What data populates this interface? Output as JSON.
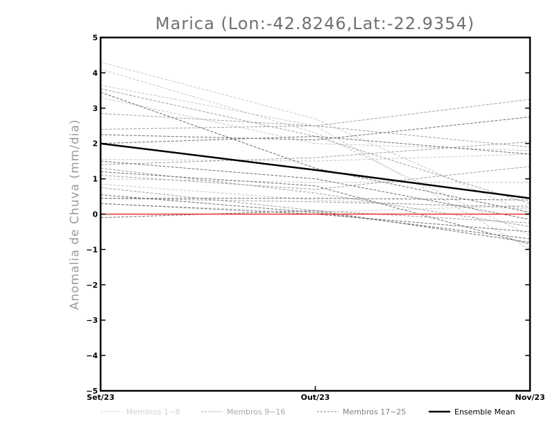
{
  "chart_data": {
    "type": "line",
    "title": "Marica (Lon:-42.8246,Lat:-22.9354)",
    "xlabel": "",
    "ylabel": "Anomalia de Chuva (mm/dia)",
    "categories": [
      "Set/23",
      "Out/23",
      "Nov/23"
    ],
    "ylim": [
      -5,
      5
    ],
    "yticks": [
      "-5",
      "-4",
      "-3",
      "-2",
      "-1",
      "0",
      "1",
      "2",
      "3",
      "4",
      "5"
    ],
    "grid": false,
    "legend_position": "bottom",
    "series": [
      {
        "name": "Membros 1-8",
        "group": "g1",
        "values": [
          4.3,
          2.7,
          0.0
        ]
      },
      {
        "name": "Membros 1-8",
        "group": "g1",
        "values": [
          4.1,
          2.3,
          -0.6
        ]
      },
      {
        "name": "Membros 1-8",
        "group": "g1",
        "values": [
          3.65,
          2.5,
          -1.0
        ]
      },
      {
        "name": "Membros 1-8",
        "group": "g1",
        "values": [
          3.3,
          2.0,
          1.8
        ]
      },
      {
        "name": "Membros 1-8",
        "group": "g1",
        "values": [
          1.55,
          1.5,
          1.7
        ]
      },
      {
        "name": "Membros 1-8",
        "group": "g1",
        "values": [
          1.0,
          0.9,
          0.9
        ]
      },
      {
        "name": "Membros 1-8",
        "group": "g1",
        "values": [
          0.85,
          0.4,
          0.15
        ]
      },
      {
        "name": "Membros 1-8",
        "group": "g1",
        "values": [
          0.3,
          0.05,
          0.25
        ]
      },
      {
        "name": "Membros 9-16",
        "group": "g2",
        "values": [
          3.55,
          2.2,
          0.3
        ]
      },
      {
        "name": "Membros 9-16",
        "group": "g2",
        "values": [
          2.85,
          2.5,
          3.25
        ]
      },
      {
        "name": "Membros 9-16",
        "group": "g2",
        "values": [
          2.4,
          2.5,
          1.9
        ]
      },
      {
        "name": "Membros 9-16",
        "group": "g2",
        "values": [
          1.4,
          1.6,
          2.05
        ]
      },
      {
        "name": "Membros 9-16",
        "group": "g2",
        "values": [
          1.3,
          0.6,
          -0.35
        ]
      },
      {
        "name": "Membros 9-16",
        "group": "g2",
        "values": [
          1.1,
          0.7,
          1.35
        ]
      },
      {
        "name": "Membros 9-16",
        "group": "g2",
        "values": [
          0.75,
          0.1,
          -0.25
        ]
      },
      {
        "name": "Membros 9-16",
        "group": "g2",
        "values": [
          0.45,
          0.35,
          0.2
        ]
      },
      {
        "name": "Membros 17-25",
        "group": "g3",
        "values": [
          3.45,
          1.3,
          0.05
        ]
      },
      {
        "name": "Membros 17-25",
        "group": "g3",
        "values": [
          2.25,
          2.1,
          2.75
        ]
      },
      {
        "name": "Membros 17-25",
        "group": "g3",
        "values": [
          2.0,
          2.2,
          1.7
        ]
      },
      {
        "name": "Membros 17-25",
        "group": "g3",
        "values": [
          1.5,
          1.0,
          -0.15
        ]
      },
      {
        "name": "Membros 17-25",
        "group": "g3",
        "values": [
          1.2,
          0.8,
          -0.85
        ]
      },
      {
        "name": "Membros 17-25",
        "group": "g3",
        "values": [
          0.55,
          0.05,
          -0.7
        ]
      },
      {
        "name": "Membros 17-25",
        "group": "g3",
        "values": [
          0.45,
          0.45,
          0.4
        ]
      },
      {
        "name": "Membros 17-25",
        "group": "g3",
        "values": [
          0.3,
          0.0,
          -0.5
        ]
      },
      {
        "name": "Membros 17-25",
        "group": "g3",
        "values": [
          -0.1,
          0.1,
          -0.8
        ]
      },
      {
        "name": "Ensemble Mean",
        "group": "mean",
        "values": [
          2.0,
          1.25,
          0.45
        ]
      },
      {
        "name": "Zero",
        "group": "zero",
        "values": [
          0.0,
          0.0,
          0.0
        ]
      }
    ],
    "legend": [
      {
        "label": "Membros 1-8",
        "group": "g1"
      },
      {
        "label": "Membros 9-16",
        "group": "g2"
      },
      {
        "label": "Membros 17-25",
        "group": "g3"
      },
      {
        "label": "Ensemble Mean",
        "group": "mean"
      }
    ],
    "colors": {
      "g1": "#c8c8c8",
      "g2": "#a0a0a0",
      "g3": "#6e6e6e",
      "mean": "#000000",
      "zero": "#e8322a",
      "legend_g1": "#d2d2d2",
      "legend_g2": "#a8a8a8",
      "legend_g3": "#808080",
      "legend_mean": "#000000"
    }
  }
}
